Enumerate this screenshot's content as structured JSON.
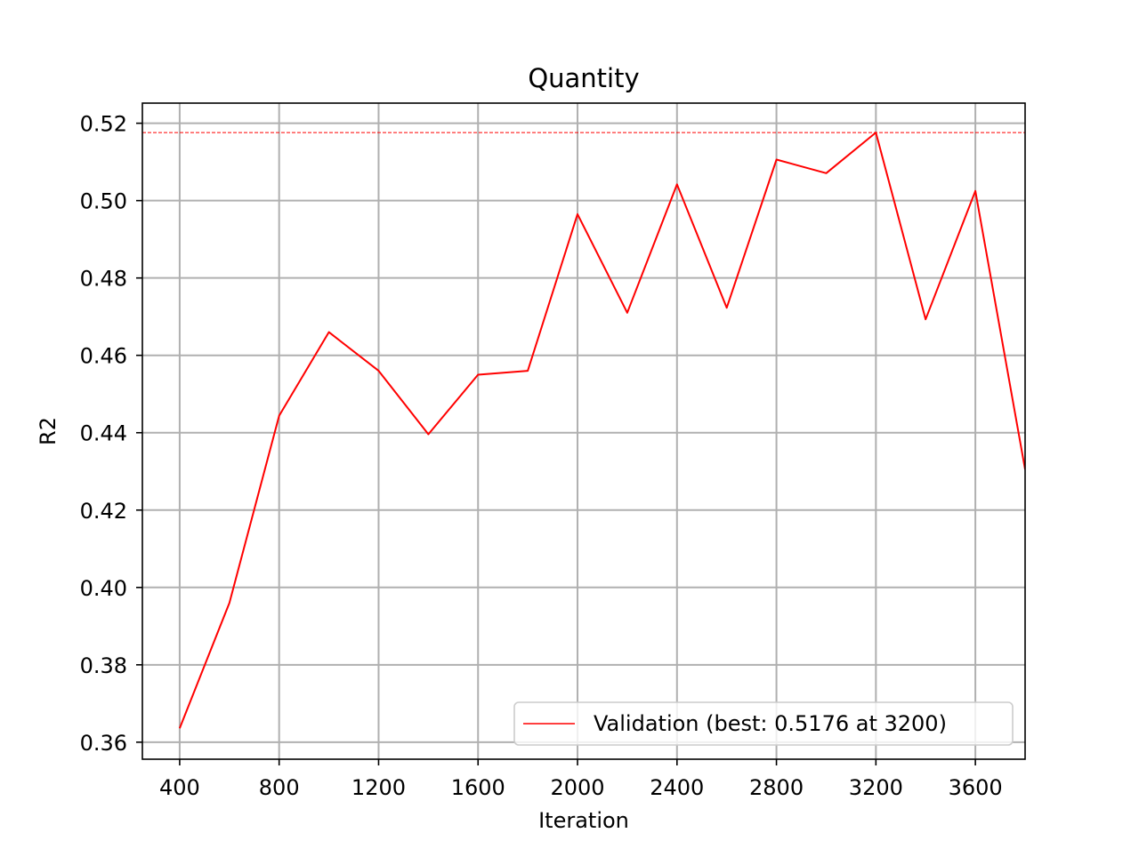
{
  "chart_data": {
    "type": "line",
    "title": "Quantity",
    "xlabel": "Iteration",
    "ylabel": "R2",
    "xlim": [
      250,
      3800
    ],
    "ylim": [
      0.3556,
      0.5252
    ],
    "x_ticks": [
      400,
      800,
      1200,
      1600,
      2000,
      2400,
      2800,
      3200,
      3600
    ],
    "x_tick_labels": [
      "400",
      "800",
      "1200",
      "1600",
      "2000",
      "2400",
      "2800",
      "3200",
      "3600"
    ],
    "y_ticks": [
      0.36,
      0.38,
      0.4,
      0.42,
      0.44,
      0.46,
      0.48,
      0.5,
      0.52
    ],
    "y_tick_labels": [
      "0.36",
      "0.38",
      "0.40",
      "0.42",
      "0.44",
      "0.46",
      "0.48",
      "0.50",
      "0.52"
    ],
    "grid": true,
    "legend_position": "lower-right",
    "series": [
      {
        "name": "Validation (best: 0.5176 at 3200)",
        "color": "#ff0000",
        "x": [
          400,
          600,
          800,
          1000,
          1200,
          1400,
          1600,
          1800,
          2000,
          2200,
          2400,
          2600,
          2800,
          3000,
          3200,
          3400,
          3600,
          3800
        ],
        "y": [
          0.3636,
          0.396,
          0.4444,
          0.466,
          0.456,
          0.4396,
          0.455,
          0.456,
          0.4965,
          0.471,
          0.5042,
          0.4723,
          0.5106,
          0.5071,
          0.5176,
          0.4693,
          0.5025,
          0.4305
        ]
      }
    ],
    "reference_line": {
      "y": 0.5176,
      "color": "#ff0000",
      "style": "dashed"
    }
  }
}
